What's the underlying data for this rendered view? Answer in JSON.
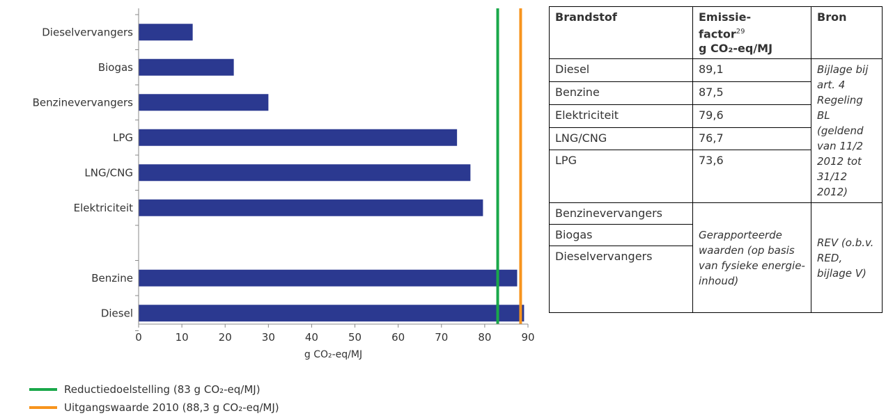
{
  "chart_data": {
    "type": "bar",
    "orientation": "horizontal",
    "categories": [
      "Dieselvervangers",
      "Biogas",
      "Benzinevervangers",
      "LPG",
      "LNG/CNG",
      "Elektriciteit",
      "",
      "Benzine",
      "Diesel"
    ],
    "values": [
      12.5,
      22,
      30,
      73.6,
      76.7,
      79.6,
      null,
      87.5,
      89.1
    ],
    "xlim": [
      0,
      90
    ],
    "xticks": [
      0,
      10,
      20,
      30,
      40,
      50,
      60,
      70,
      80,
      90
    ],
    "xlabel": "g CO₂-eq/MJ",
    "bar_color": "#2b3990",
    "grid": false,
    "reference_lines": [
      {
        "value": 83,
        "color": "#1aa84a",
        "label": "Reductiedoelstelling (83 g CO₂-eq/MJ)"
      },
      {
        "value": 88.3,
        "color": "#f7941d",
        "label": "Uitgangswaarde 2010 (88,3 g CO₂-eq/MJ)"
      }
    ],
    "legend_position": "bottom-left"
  },
  "table": {
    "headers": {
      "fuel": "Brandstof",
      "factor_line1": "Emissie-",
      "factor_line2": "factor",
      "factor_sup": "29",
      "factor_line3": "g CO₂-eq/MJ",
      "source": "Bron"
    },
    "rows": [
      {
        "fuel": "Diesel",
        "factor": "89,1"
      },
      {
        "fuel": "Benzine",
        "factor": "87,5"
      },
      {
        "fuel": "Elektriciteit",
        "factor": "79,6"
      },
      {
        "fuel": "LNG/CNG",
        "factor": "76,7"
      },
      {
        "fuel": "LPG",
        "factor": "73,6"
      }
    ],
    "source_1": "Bijlage bij art. 4 Regeling BL (geldend van 11/2 2012 tot 31/12 2012)",
    "rows2": [
      {
        "fuel": "Benzinevervangers"
      },
      {
        "fuel": "Biogas"
      },
      {
        "fuel": "Dieselvervangers"
      }
    ],
    "factor_2": "Gerapporteerde waarden (op basis van fysieke energie-inhoud)",
    "source_2": "REV (o.b.v. RED, bijlage V)"
  }
}
